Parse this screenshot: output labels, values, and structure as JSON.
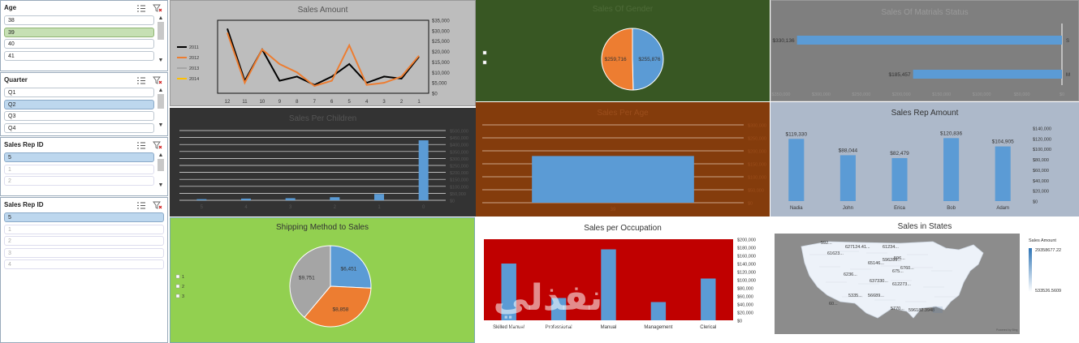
{
  "slicers": [
    {
      "title": "Age",
      "items": [
        "38",
        "39",
        "40",
        "41"
      ],
      "selected": 1,
      "style": "green"
    },
    {
      "title": "Quarter",
      "items": [
        "Q1",
        "Q2",
        "Q3",
        "Q4"
      ],
      "selected": 1,
      "style": "blue"
    },
    {
      "title": "Sales Rep ID",
      "items": [
        "5",
        "1",
        "2"
      ],
      "selected": 0,
      "style": "blue"
    },
    {
      "title": "Sales Rep ID",
      "items": [
        "5",
        "1",
        "2",
        "3",
        "4"
      ],
      "selected": 0,
      "style": "blue"
    }
  ],
  "charts": {
    "sales_amount": {
      "title": "Sales Amount",
      "type": "line",
      "categories": [
        "12",
        "11",
        "10",
        "9",
        "8",
        "7",
        "6",
        "5",
        "4",
        "3",
        "2",
        "1"
      ],
      "y_ticks": [
        "$35,000",
        "$30,000",
        "$25,000",
        "$20,000",
        "$15,000",
        "$10,000",
        "$5,000",
        "$0"
      ],
      "ylim": [
        0,
        35000
      ],
      "series": [
        {
          "name": "2011",
          "color": "#000000",
          "values": [
            31000,
            6000,
            21000,
            6000,
            8000,
            4000,
            8000,
            14000,
            5000,
            8000,
            7000,
            17500
          ]
        },
        {
          "name": "2012",
          "color": "#ed7d31",
          "values": [
            29000,
            5000,
            21000,
            14000,
            10000,
            3500,
            6000,
            23000,
            4000,
            5000,
            8000,
            18000
          ]
        },
        {
          "name": "2013",
          "color": "#a5a5a5",
          "values": []
        },
        {
          "name": "2014",
          "color": "#ffc000",
          "values": []
        }
      ]
    },
    "sales_of_gender": {
      "title": "Sales Of Gender",
      "type": "pie",
      "slices": [
        {
          "label": "$255,876",
          "value": 255876,
          "color": "#5b9bd5"
        },
        {
          "label": "$259,716",
          "value": 259716,
          "color": "#ed7d31"
        }
      ],
      "legend": [
        "",
        ""
      ]
    },
    "sales_of_matrials_status": {
      "title": "Sales Of Matrials Status",
      "type": "bar",
      "categories": [
        "S",
        "M"
      ],
      "values": [
        330136,
        185457
      ],
      "labels": [
        "$330,136",
        "$185,457"
      ],
      "x_ticks": [
        "$350,000",
        "$300,000",
        "$250,000",
        "$200,000",
        "$150,000",
        "$100,000",
        "$50,000",
        "$0"
      ],
      "xlim": [
        0,
        350000
      ]
    },
    "sales_per_children": {
      "title": "Sales Per Children",
      "type": "bar",
      "categories": [
        "5",
        "4",
        "3",
        "2",
        "1",
        "0"
      ],
      "values": [
        8000,
        12000,
        15000,
        22000,
        45000,
        430000
      ],
      "y_ticks": [
        "$500,000",
        "$450,000",
        "$400,000",
        "$350,000",
        "$300,000",
        "$250,000",
        "$200,000",
        "$150,000",
        "$100,000",
        "$50,000",
        "$0"
      ],
      "ylim": [
        0,
        500000
      ]
    },
    "sales_per_age": {
      "title": "Sales Per Age",
      "type": "bar",
      "categories": [
        "39"
      ],
      "values": [
        180000
      ],
      "y_ticks": [
        "$300,000",
        "$250,000",
        "$200,000",
        "$150,000",
        "$100,000",
        "$50,000",
        "$0"
      ],
      "ylim": [
        0,
        300000
      ]
    },
    "sales_rep_amount": {
      "title": "Sales Rep Amount",
      "type": "bar",
      "categories": [
        "Nadia",
        "John",
        "Erica",
        "Bob",
        "Adam"
      ],
      "values": [
        119330,
        88044,
        82479,
        120836,
        104905
      ],
      "labels": [
        "$119,330",
        "$88,044",
        "$82,479",
        "$120,836",
        "$104,905"
      ],
      "y_ticks": [
        "$140,000",
        "$120,000",
        "$100,000",
        "$80,000",
        "$60,000",
        "$40,000",
        "$20,000",
        "$0"
      ],
      "ylim": [
        0,
        140000
      ]
    },
    "shipping_method": {
      "title": "Shipping Method to Sales",
      "type": "pie",
      "slices": [
        {
          "label": "$6,451",
          "value": 6451,
          "color": "#5b9bd5"
        },
        {
          "label": "$8,858",
          "value": 8858,
          "color": "#ed7d31"
        },
        {
          "label": "$9,751",
          "value": 9751,
          "color": "#a5a5a5"
        }
      ],
      "legend": [
        "1",
        "2",
        "3"
      ]
    },
    "sales_per_occupation": {
      "title": "Sales per Occupation",
      "type": "bar",
      "categories": [
        "Skilled Manual",
        "Professional",
        "Manual",
        "Management",
        "Clerical"
      ],
      "values": [
        140000,
        55000,
        175000,
        45000,
        103000
      ],
      "y_ticks": [
        "$200,000",
        "$180,000",
        "$160,000",
        "$140,000",
        "$120,000",
        "$100,000",
        "$80,000",
        "$60,000",
        "$40,000",
        "$20,000",
        "$0"
      ],
      "ylim": [
        0,
        200000
      ]
    },
    "sales_in_states": {
      "title": "Sales in States",
      "type": "map",
      "legend_title": "Sales Amount",
      "legend_max": "29358677.22",
      "legend_min": "533526.5609",
      "map_labels": [
        "592...",
        "627124.41...",
        "61234...",
        "61623...",
        "65146...",
        "596289...",
        "596...",
        "675...",
        "6760...",
        "6236...",
        "637330...",
        "612273...",
        "5335...",
        "56689...",
        "60...",
        "5770...",
        "596182.3948"
      ],
      "credit": "Powered by Bing"
    }
  },
  "watermark": {
    "text": "نفذلي",
    "sub": "nafezly.com"
  }
}
